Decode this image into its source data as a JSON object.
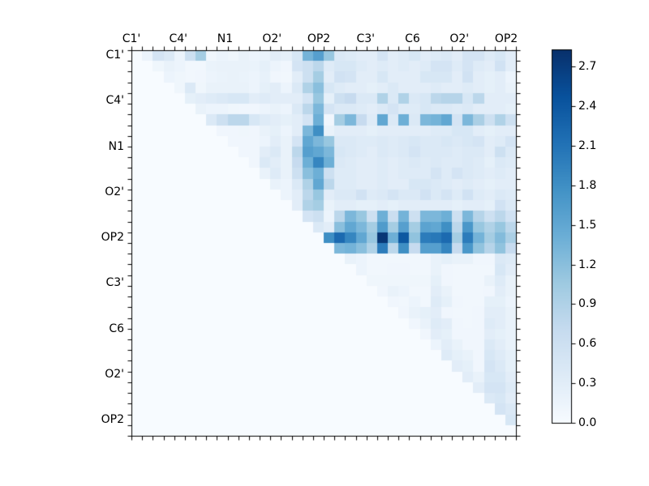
{
  "chart_data": {
    "type": "heatmap",
    "title": "",
    "colormap": "Blues",
    "n_rows": 36,
    "n_cols": 36,
    "group_size": 4,
    "x_labels": [
      "C1'",
      "C4'",
      "N1",
      "O2'",
      "OP2",
      "C3'",
      "C6",
      "O2'",
      "OP2"
    ],
    "y_labels": [
      "C1'",
      "C4'",
      "N1",
      "O2'",
      "OP2",
      "C3'",
      "C6",
      "O2'",
      "OP2"
    ],
    "vmin": 0,
    "vmax": 2.83,
    "triangular": "upper",
    "values": [
      [
        0,
        0.15,
        0.5,
        0.4,
        0.15,
        0.6,
        1.0,
        0.08,
        0.15,
        0.12,
        0.2,
        0.15,
        0.18,
        0.3,
        0.25,
        0.45,
        1.35,
        1.6,
        1.1,
        0.4,
        0.35,
        0.3,
        0.3,
        0.5,
        0.3,
        0.35,
        0.45,
        0.3,
        0.35,
        0.4,
        0.3,
        0.5,
        0.5,
        0.35,
        0.45,
        0.3
      ],
      [
        0,
        0,
        0.12,
        0.2,
        0.15,
        0.08,
        0.08,
        0.18,
        0.2,
        0.2,
        0.2,
        0.18,
        0.25,
        0.15,
        0.1,
        0.5,
        0.6,
        0.8,
        0.35,
        0.45,
        0.45,
        0.35,
        0.3,
        0.35,
        0.3,
        0.35,
        0.3,
        0.35,
        0.5,
        0.5,
        0.35,
        0.5,
        0.35,
        0.3,
        0.55,
        0.3
      ],
      [
        0,
        0,
        0,
        0.15,
        0.12,
        0.08,
        0.1,
        0.15,
        0.18,
        0.2,
        0.18,
        0.15,
        0.22,
        0.1,
        0.08,
        0.3,
        0.6,
        1.0,
        0.3,
        0.55,
        0.5,
        0.3,
        0.3,
        0.45,
        0.3,
        0.3,
        0.3,
        0.45,
        0.45,
        0.45,
        0.3,
        0.55,
        0.3,
        0.25,
        0.3,
        0.15
      ],
      [
        0,
        0,
        0,
        0,
        0.12,
        0.4,
        0.12,
        0.2,
        0.2,
        0.2,
        0.2,
        0.15,
        0.25,
        0.3,
        0.15,
        0.4,
        0.9,
        1.2,
        0.45,
        0.35,
        0.3,
        0.3,
        0.25,
        0.3,
        0.4,
        0.3,
        0.3,
        0.3,
        0.35,
        0.3,
        0.3,
        0.35,
        0.3,
        0.25,
        0.3,
        0.2
      ],
      [
        0,
        0,
        0,
        0,
        0,
        0.25,
        0.3,
        0.35,
        0.4,
        0.45,
        0.45,
        0.3,
        0.35,
        0.3,
        0.3,
        0.3,
        0.5,
        1.1,
        0.25,
        0.6,
        0.7,
        0.4,
        0.4,
        0.9,
        0.4,
        0.9,
        0.4,
        0.45,
        0.8,
        0.85,
        0.85,
        0.45,
        0.8,
        0.3,
        0.3,
        0.3
      ],
      [
        0,
        0,
        0,
        0,
        0,
        0,
        0.2,
        0.15,
        0.15,
        0.12,
        0.1,
        0.1,
        0.15,
        0.2,
        0.15,
        0.4,
        0.8,
        1.3,
        0.5,
        0.4,
        0.4,
        0.35,
        0.3,
        0.4,
        0.5,
        0.35,
        0.35,
        0.45,
        0.4,
        0.4,
        0.35,
        0.4,
        0.3,
        0.3,
        0.3,
        0.25
      ],
      [
        0,
        0,
        0,
        0,
        0,
        0,
        0,
        0.4,
        0.6,
        0.8,
        0.8,
        0.45,
        0.35,
        0.3,
        0.25,
        0.3,
        0.5,
        1.4,
        0.1,
        1.0,
        1.3,
        0.7,
        0.35,
        1.5,
        0.4,
        1.4,
        0.4,
        1.3,
        1.35,
        1.5,
        0.5,
        1.3,
        0.95,
        0.6,
        0.9,
        0.6
      ],
      [
        0,
        0,
        0,
        0,
        0,
        0,
        0,
        0,
        0.1,
        0.1,
        0.12,
        0.1,
        0.2,
        0.25,
        0.15,
        0.3,
        1.3,
        1.8,
        0.2,
        0.3,
        0.3,
        0.3,
        0.25,
        0.3,
        0.3,
        0.3,
        0.3,
        0.3,
        0.35,
        0.35,
        0.45,
        0.45,
        0.3,
        0.25,
        0.3,
        0.3
      ],
      [
        0,
        0,
        0,
        0,
        0,
        0,
        0,
        0,
        0,
        0.1,
        0.1,
        0.1,
        0.15,
        0.3,
        0.2,
        0.5,
        1.5,
        1.3,
        1.1,
        0.4,
        0.4,
        0.35,
        0.35,
        0.4,
        0.35,
        0.4,
        0.45,
        0.4,
        0.4,
        0.45,
        0.4,
        0.45,
        0.5,
        0.3,
        0.35,
        0.5
      ],
      [
        0,
        0,
        0,
        0,
        0,
        0,
        0,
        0,
        0,
        0,
        0.1,
        0.1,
        0.3,
        0.4,
        0.2,
        0.8,
        1.6,
        1.5,
        1.3,
        0.45,
        0.4,
        0.35,
        0.3,
        0.4,
        0.35,
        0.4,
        0.5,
        0.4,
        0.4,
        0.4,
        0.35,
        0.4,
        0.4,
        0.3,
        0.6,
        0.4
      ],
      [
        0,
        0,
        0,
        0,
        0,
        0,
        0,
        0,
        0,
        0,
        0,
        0.1,
        0.4,
        0.3,
        0.2,
        0.7,
        1.4,
        1.9,
        1.4,
        0.4,
        0.35,
        0.3,
        0.3,
        0.35,
        0.3,
        0.35,
        0.4,
        0.35,
        0.4,
        0.35,
        0.35,
        0.4,
        0.35,
        0.25,
        0.4,
        0.35
      ],
      [
        0,
        0,
        0,
        0,
        0,
        0,
        0,
        0,
        0,
        0,
        0,
        0,
        0.2,
        0.35,
        0.2,
        0.6,
        1.2,
        1.4,
        0.6,
        0.35,
        0.35,
        0.3,
        0.3,
        0.35,
        0.3,
        0.35,
        0.35,
        0.35,
        0.5,
        0.35,
        0.5,
        0.4,
        0.35,
        0.3,
        0.35,
        0.3
      ],
      [
        0,
        0,
        0,
        0,
        0,
        0,
        0,
        0,
        0,
        0,
        0,
        0,
        0,
        0.2,
        0.15,
        0.4,
        0.9,
        1.5,
        0.8,
        0.35,
        0.35,
        0.3,
        0.3,
        0.35,
        0.3,
        0.3,
        0.45,
        0.45,
        0.4,
        0.35,
        0.3,
        0.35,
        0.3,
        0.25,
        0.3,
        0.3
      ],
      [
        0,
        0,
        0,
        0,
        0,
        0,
        0,
        0,
        0,
        0,
        0,
        0,
        0,
        0,
        0.15,
        0.3,
        0.8,
        1.1,
        0.3,
        0.4,
        0.4,
        0.55,
        0.35,
        0.4,
        0.5,
        0.4,
        0.4,
        0.55,
        0.4,
        0.5,
        0.35,
        0.55,
        0.35,
        0.3,
        0.4,
        0.35
      ],
      [
        0,
        0,
        0,
        0,
        0,
        0,
        0,
        0,
        0,
        0,
        0,
        0,
        0,
        0,
        0,
        0.3,
        0.9,
        1.0,
        0.2,
        0.3,
        0.3,
        0.25,
        0.25,
        0.3,
        0.25,
        0.3,
        0.3,
        0.3,
        0.3,
        0.3,
        0.25,
        0.3,
        0.3,
        0.25,
        0.55,
        0.4
      ],
      [
        0,
        0,
        0,
        0,
        0,
        0,
        0,
        0,
        0,
        0,
        0,
        0,
        0,
        0,
        0,
        0,
        0.5,
        0.6,
        0.15,
        0.8,
        1.3,
        1.1,
        0.6,
        1.4,
        0.65,
        1.35,
        0.6,
        1.3,
        1.3,
        1.4,
        0.6,
        1.3,
        0.85,
        0.6,
        0.8,
        0.55
      ],
      [
        0,
        0,
        0,
        0,
        0,
        0,
        0,
        0,
        0,
        0,
        0,
        0,
        0,
        0,
        0,
        0,
        0,
        0.4,
        0.3,
        1.2,
        1.5,
        1.3,
        1.0,
        1.65,
        1.0,
        1.6,
        1.0,
        1.55,
        1.5,
        1.8,
        0.8,
        1.7,
        1.1,
        0.9,
        1.1,
        0.8
      ],
      [
        0,
        0,
        0,
        0,
        0,
        0,
        0,
        0,
        0,
        0,
        0,
        0,
        0,
        0,
        0,
        0,
        0,
        0,
        1.8,
        2.2,
        1.9,
        1.5,
        1.1,
        2.75,
        1.4,
        2.4,
        1.15,
        2.0,
        2.05,
        2.2,
        1.0,
        2.0,
        1.35,
        1.0,
        1.25,
        0.95
      ],
      [
        0,
        0,
        0,
        0,
        0,
        0,
        0,
        0,
        0,
        0,
        0,
        0,
        0,
        0,
        0,
        0,
        0,
        0,
        0,
        1.3,
        1.35,
        1.2,
        0.9,
        2.0,
        0.8,
        1.8,
        0.7,
        1.6,
        1.6,
        1.9,
        0.7,
        1.7,
        1.15,
        0.85,
        1.15,
        0.7
      ],
      [
        0,
        0,
        0,
        0,
        0,
        0,
        0,
        0,
        0,
        0,
        0,
        0,
        0,
        0,
        0,
        0,
        0,
        0,
        0,
        0,
        0.2,
        0.15,
        0.08,
        0.08,
        0.08,
        0.08,
        0.08,
        0.08,
        0.2,
        0.25,
        0.2,
        0.2,
        0.1,
        0.1,
        0.4,
        0.35
      ],
      [
        0,
        0,
        0,
        0,
        0,
        0,
        0,
        0,
        0,
        0,
        0,
        0,
        0,
        0,
        0,
        0,
        0,
        0,
        0,
        0,
        0,
        0.15,
        0.08,
        0.08,
        0.1,
        0.1,
        0.08,
        0.08,
        0.2,
        0.1,
        0.08,
        0.08,
        0.08,
        0.08,
        0.45,
        0.3
      ],
      [
        0,
        0,
        0,
        0,
        0,
        0,
        0,
        0,
        0,
        0,
        0,
        0,
        0,
        0,
        0,
        0,
        0,
        0,
        0,
        0,
        0,
        0,
        0.12,
        0.12,
        0.12,
        0.12,
        0.12,
        0.12,
        0.25,
        0.1,
        0.08,
        0.08,
        0.08,
        0.2,
        0.35,
        0.2
      ],
      [
        0,
        0,
        0,
        0,
        0,
        0,
        0,
        0,
        0,
        0,
        0,
        0,
        0,
        0,
        0,
        0,
        0,
        0,
        0,
        0,
        0,
        0,
        0,
        0.1,
        0.2,
        0.15,
        0.08,
        0.08,
        0.3,
        0.2,
        0.08,
        0.08,
        0.08,
        0.1,
        0.3,
        0.2
      ],
      [
        0,
        0,
        0,
        0,
        0,
        0,
        0,
        0,
        0,
        0,
        0,
        0,
        0,
        0,
        0,
        0,
        0,
        0,
        0,
        0,
        0,
        0,
        0,
        0,
        0.1,
        0.08,
        0.15,
        0.08,
        0.35,
        0.25,
        0.1,
        0.08,
        0.08,
        0.25,
        0.25,
        0.15
      ],
      [
        0,
        0,
        0,
        0,
        0,
        0,
        0,
        0,
        0,
        0,
        0,
        0,
        0,
        0,
        0,
        0,
        0,
        0,
        0,
        0,
        0,
        0,
        0,
        0,
        0,
        0.1,
        0.2,
        0.25,
        0.3,
        0.1,
        0.08,
        0.08,
        0.1,
        0.3,
        0.3,
        0.2
      ],
      [
        0,
        0,
        0,
        0,
        0,
        0,
        0,
        0,
        0,
        0,
        0,
        0,
        0,
        0,
        0,
        0,
        0,
        0,
        0,
        0,
        0,
        0,
        0,
        0,
        0,
        0,
        0.1,
        0.2,
        0.35,
        0.3,
        0.1,
        0.08,
        0.1,
        0.35,
        0.3,
        0.2
      ],
      [
        0,
        0,
        0,
        0,
        0,
        0,
        0,
        0,
        0,
        0,
        0,
        0,
        0,
        0,
        0,
        0,
        0,
        0,
        0,
        0,
        0,
        0,
        0,
        0,
        0,
        0,
        0,
        0.1,
        0.3,
        0.25,
        0.1,
        0.1,
        0.1,
        0.3,
        0.25,
        0.2
      ],
      [
        0,
        0,
        0,
        0,
        0,
        0,
        0,
        0,
        0,
        0,
        0,
        0,
        0,
        0,
        0,
        0,
        0,
        0,
        0,
        0,
        0,
        0,
        0,
        0,
        0,
        0,
        0,
        0,
        0.15,
        0.3,
        0.2,
        0.1,
        0.1,
        0.4,
        0.3,
        0.2
      ],
      [
        0,
        0,
        0,
        0,
        0,
        0,
        0,
        0,
        0,
        0,
        0,
        0,
        0,
        0,
        0,
        0,
        0,
        0,
        0,
        0,
        0,
        0,
        0,
        0,
        0,
        0,
        0,
        0,
        0,
        0.35,
        0.25,
        0.2,
        0.1,
        0.45,
        0.35,
        0.25
      ],
      [
        0,
        0,
        0,
        0,
        0,
        0,
        0,
        0,
        0,
        0,
        0,
        0,
        0,
        0,
        0,
        0,
        0,
        0,
        0,
        0,
        0,
        0,
        0,
        0,
        0,
        0,
        0,
        0,
        0,
        0,
        0.3,
        0.25,
        0.1,
        0.5,
        0.4,
        0.25
      ],
      [
        0,
        0,
        0,
        0,
        0,
        0,
        0,
        0,
        0,
        0,
        0,
        0,
        0,
        0,
        0,
        0,
        0,
        0,
        0,
        0,
        0,
        0,
        0,
        0,
        0,
        0,
        0,
        0,
        0,
        0,
        0,
        0.3,
        0.2,
        0.45,
        0.45,
        0.3
      ],
      [
        0,
        0,
        0,
        0,
        0,
        0,
        0,
        0,
        0,
        0,
        0,
        0,
        0,
        0,
        0,
        0,
        0,
        0,
        0,
        0,
        0,
        0,
        0,
        0,
        0,
        0,
        0,
        0,
        0,
        0,
        0,
        0,
        0.3,
        0.5,
        0.5,
        0.35
      ],
      [
        0,
        0,
        0,
        0,
        0,
        0,
        0,
        0,
        0,
        0,
        0,
        0,
        0,
        0,
        0,
        0,
        0,
        0,
        0,
        0,
        0,
        0,
        0,
        0,
        0,
        0,
        0,
        0,
        0,
        0,
        0,
        0,
        0,
        0.4,
        0.45,
        0.3
      ],
      [
        0,
        0,
        0,
        0,
        0,
        0,
        0,
        0,
        0,
        0,
        0,
        0,
        0,
        0,
        0,
        0,
        0,
        0,
        0,
        0,
        0,
        0,
        0,
        0,
        0,
        0,
        0,
        0,
        0,
        0,
        0,
        0,
        0,
        0,
        0.5,
        0.4
      ],
      [
        0,
        0,
        0,
        0,
        0,
        0,
        0,
        0,
        0,
        0,
        0,
        0,
        0,
        0,
        0,
        0,
        0,
        0,
        0,
        0,
        0,
        0,
        0,
        0,
        0,
        0,
        0,
        0,
        0,
        0,
        0,
        0,
        0,
        0,
        0,
        0.45
      ],
      [
        0,
        0,
        0,
        0,
        0,
        0,
        0,
        0,
        0,
        0,
        0,
        0,
        0,
        0,
        0,
        0,
        0,
        0,
        0,
        0,
        0,
        0,
        0,
        0,
        0,
        0,
        0,
        0,
        0,
        0,
        0,
        0,
        0,
        0,
        0,
        0
      ]
    ],
    "colorbar": {
      "tick_labels": [
        "0.0",
        "0.3",
        "0.6",
        "0.9",
        "1.2",
        "1.5",
        "1.8",
        "2.1",
        "2.4",
        "2.7"
      ],
      "tick_values": [
        0,
        0.3,
        0.6,
        0.9,
        1.2,
        1.5,
        1.8,
        2.1,
        2.4,
        2.7
      ]
    },
    "colors": {
      "background": "#ffffff",
      "frame": "#000000",
      "colormap_low": "#f7fbff",
      "colormap_high": "#08306b"
    }
  }
}
